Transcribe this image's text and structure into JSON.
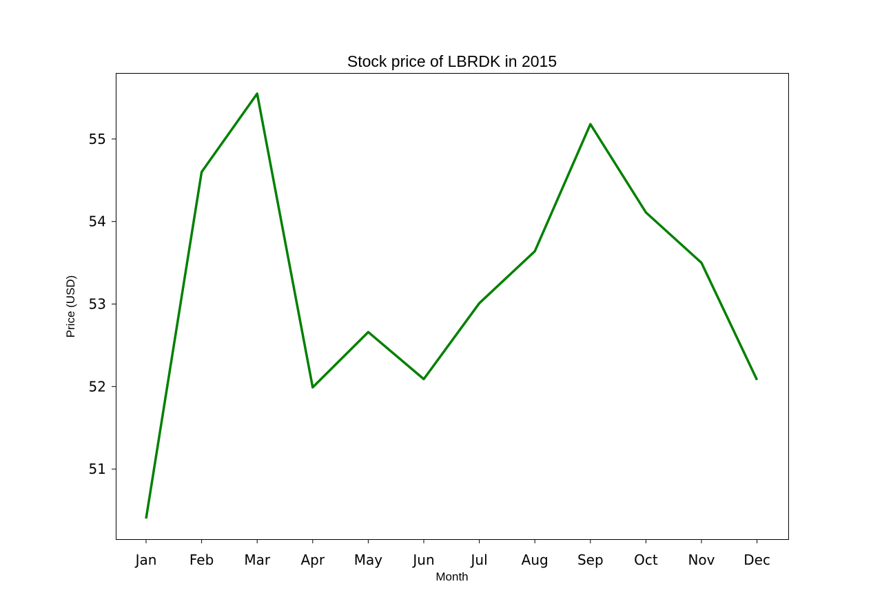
{
  "chart_data": {
    "type": "line",
    "title": "Stock price of LBRDK in 2015",
    "xlabel": "Month",
    "ylabel": "Price (USD)",
    "categories": [
      "Jan",
      "Feb",
      "Mar",
      "Apr",
      "May",
      "Jun",
      "Jul",
      "Aug",
      "Sep",
      "Oct",
      "Nov",
      "Dec"
    ],
    "series": [
      {
        "values": [
          50.4,
          54.6,
          55.55,
          51.99,
          52.66,
          52.09,
          53.01,
          53.64,
          55.18,
          54.11,
          53.5,
          52.08
        ],
        "color": "#008000"
      }
    ],
    "yticks": [
      51,
      52,
      53,
      54,
      55
    ],
    "ylim": [
      50.15,
      55.8
    ],
    "grid": false,
    "legend": "none"
  }
}
